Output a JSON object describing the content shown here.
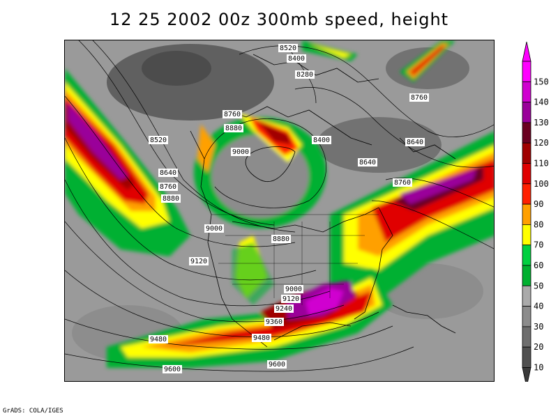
{
  "title": "12 25 2002 00z 300mb speed, height",
  "footer": "GrADS: COLA/IGES",
  "colorbar": {
    "levels": [
      {
        "label": "150",
        "color": "#ff00ff"
      },
      {
        "label": "140",
        "color": "#d000d0"
      },
      {
        "label": "130",
        "color": "#9a009a"
      },
      {
        "label": "120",
        "color": "#6a0020"
      },
      {
        "label": "110",
        "color": "#a00000"
      },
      {
        "label": "100",
        "color": "#e00000"
      },
      {
        "label": "90",
        "color": "#ff2000"
      },
      {
        "label": "80",
        "color": "#ffa000"
      },
      {
        "label": "70",
        "color": "#ffff00"
      },
      {
        "label": "60",
        "color": "#00d040"
      },
      {
        "label": "50",
        "color": "#00b030"
      },
      {
        "label": "40",
        "color": "#aaaaaa"
      },
      {
        "label": "30",
        "color": "#8c8c8c"
      },
      {
        "label": "20",
        "color": "#6e6e6e"
      },
      {
        "label": "10",
        "color": "#505050"
      }
    ],
    "bottom_color": "#3a3a3a"
  },
  "contour_labels": [
    "8520",
    "8400",
    "8280",
    "8760",
    "8760",
    "8880",
    "8520",
    "9000",
    "8400",
    "8640",
    "8640",
    "8640",
    "8760",
    "8760",
    "8880",
    "9000",
    "8880",
    "9120",
    "9000",
    "9120",
    "9240",
    "9360",
    "9480",
    "9480",
    "9600",
    "9600"
  ]
}
